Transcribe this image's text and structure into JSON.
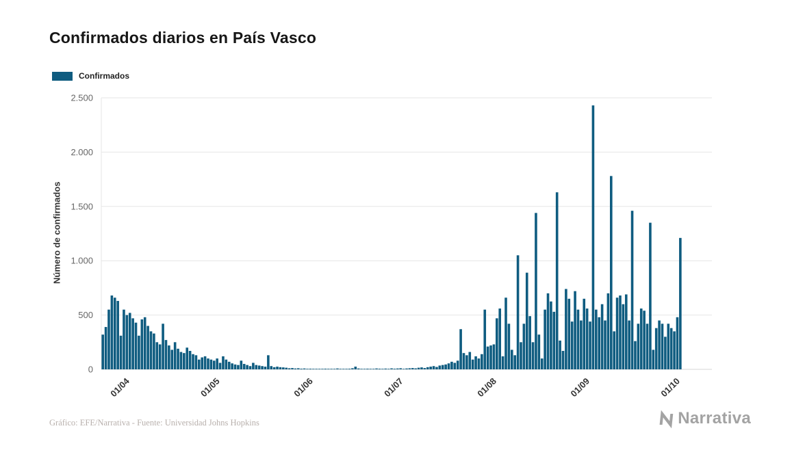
{
  "page": {
    "title": "Confirmados diarios en País Vasco",
    "credit": "Gráfico: EFE/Narrativa - Fuente: Universidad Johns Hopkins",
    "brand": "Narrativa"
  },
  "legend": {
    "label": "Confirmados"
  },
  "chart_data": {
    "type": "bar",
    "title": "Confirmados diarios en País Vasco",
    "xlabel": "",
    "ylabel": "Número de confirmados",
    "ylim": [
      0,
      2500
    ],
    "grid": "horizontal",
    "legend_position": "top-left",
    "y_ticks": [
      0,
      500,
      1000,
      1500,
      2000,
      2500
    ],
    "y_tick_labels": [
      "0",
      "500",
      "1.000",
      "1.500",
      "2.000",
      "2.500"
    ],
    "x_tick_labels": [
      "01/04",
      "01/05",
      "01/06",
      "01/07",
      "01/08",
      "01/09",
      "01/10"
    ],
    "x_tick_indices": [
      9,
      39,
      70,
      100,
      131,
      162,
      192
    ],
    "series": [
      {
        "name": "Confirmados",
        "color": "#0f5c80",
        "values": [
          320,
          390,
          550,
          680,
          660,
          630,
          310,
          550,
          500,
          520,
          470,
          430,
          310,
          460,
          480,
          400,
          350,
          330,
          250,
          230,
          420,
          270,
          220,
          180,
          250,
          190,
          160,
          150,
          200,
          170,
          140,
          130,
          90,
          110,
          120,
          100,
          90,
          80,
          100,
          60,
          120,
          90,
          70,
          55,
          45,
          40,
          80,
          50,
          40,
          30,
          60,
          40,
          35,
          30,
          25,
          130,
          30,
          20,
          25,
          20,
          18,
          15,
          10,
          12,
          8,
          10,
          6,
          8,
          5,
          6,
          3,
          5,
          2,
          4,
          6,
          3,
          2,
          5,
          8,
          4,
          3,
          2,
          6,
          10,
          25,
          8,
          5,
          4,
          6,
          3,
          5,
          8,
          6,
          4,
          7,
          5,
          9,
          6,
          8,
          10,
          5,
          8,
          10,
          12,
          9,
          15,
          18,
          12,
          20,
          25,
          30,
          22,
          35,
          40,
          45,
          55,
          70,
          60,
          80,
          370,
          150,
          130,
          160,
          90,
          120,
          100,
          140,
          550,
          210,
          220,
          230,
          470,
          560,
          120,
          660,
          420,
          180,
          130,
          1050,
          250,
          420,
          890,
          490,
          250,
          1440,
          320,
          100,
          550,
          700,
          625,
          530,
          1630,
          265,
          170,
          740,
          650,
          440,
          720,
          550,
          450,
          650,
          560,
          440,
          2430,
          550,
          480,
          600,
          450,
          700,
          1780,
          350,
          660,
          680,
          600,
          690,
          450,
          1460,
          260,
          420,
          560,
          540,
          420,
          1350,
          180,
          380,
          450,
          420,
          300,
          420,
          380,
          350,
          480,
          1210
        ]
      }
    ]
  }
}
